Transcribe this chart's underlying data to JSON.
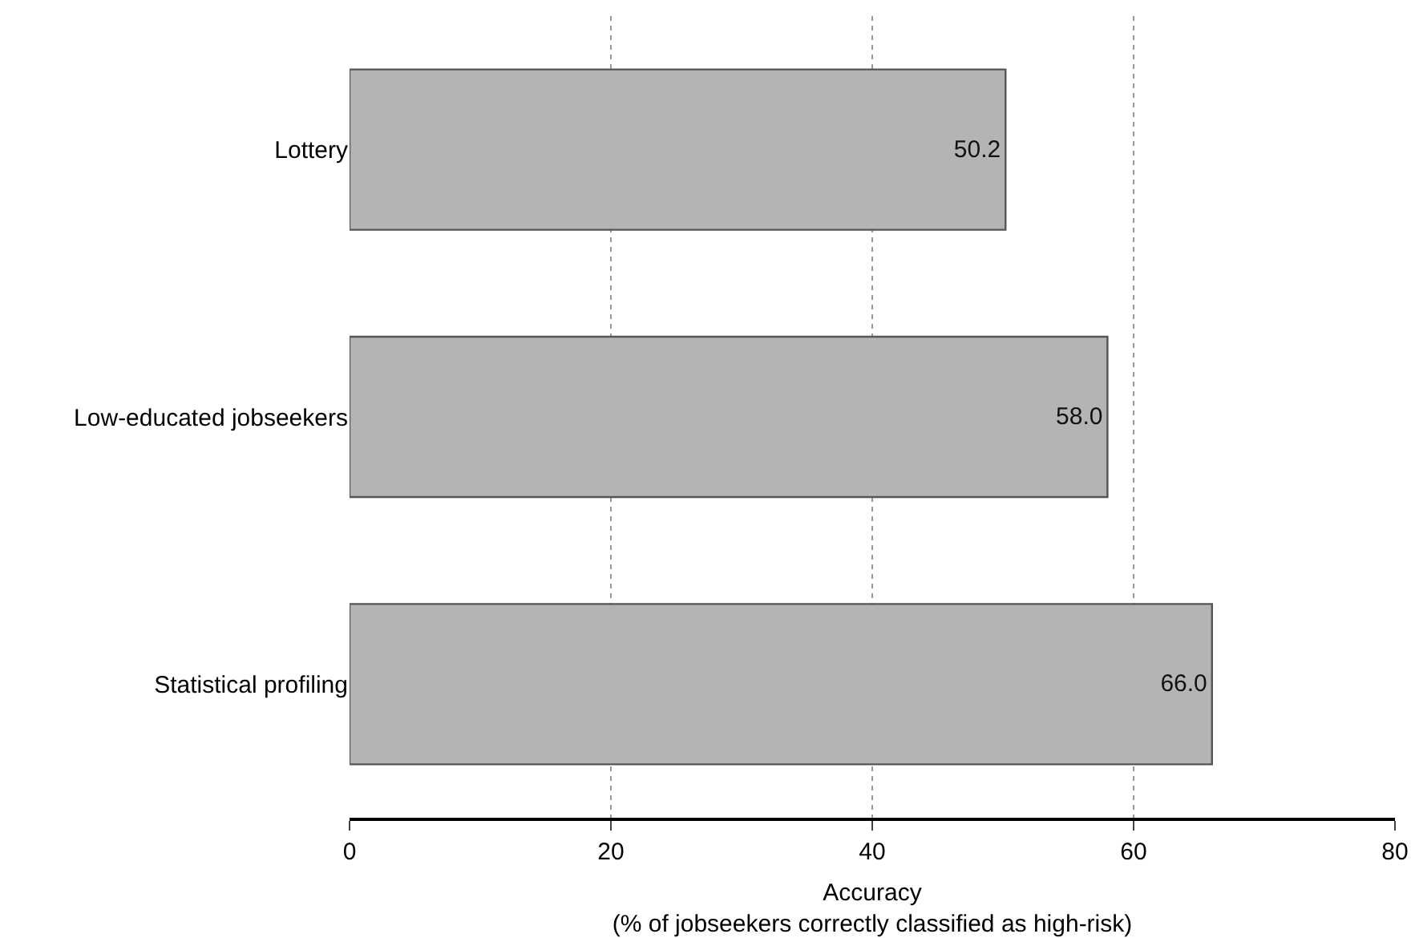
{
  "chart_data": {
    "type": "bar",
    "orientation": "horizontal",
    "categories": [
      "Lottery",
      "Low-educated jobseekers",
      "Statistical profiling"
    ],
    "values": [
      50.2,
      58.0,
      66.0
    ],
    "value_labels": [
      "50.2",
      "58.0",
      "66.0"
    ],
    "color": "#b4b4b4",
    "xlim": [
      0,
      80
    ],
    "xticks": [
      0,
      20,
      40,
      60,
      80
    ],
    "xlabel": "Accuracy\n(% of jobseekers correctly classified as high-risk)",
    "grid": "x",
    "legend": false
  }
}
